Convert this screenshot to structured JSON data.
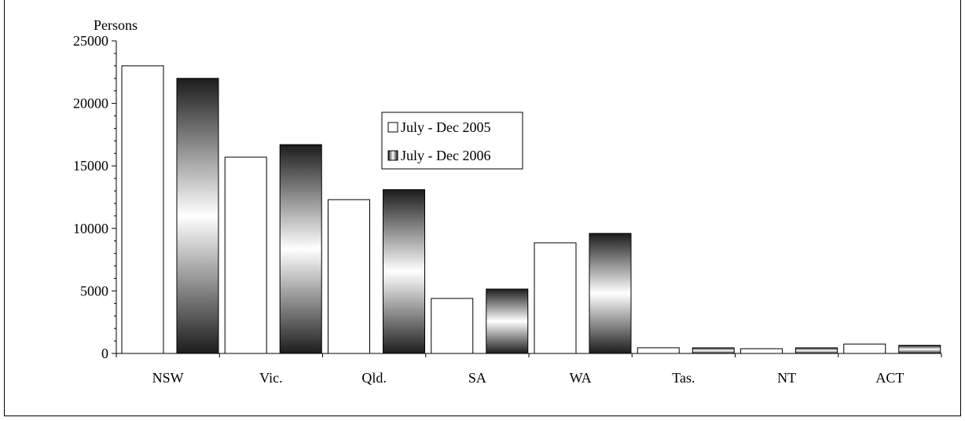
{
  "chart_data": {
    "type": "bar",
    "ylabel": "Persons",
    "ylim": [
      0,
      25000
    ],
    "yticks": [
      0,
      5000,
      10000,
      15000,
      20000,
      25000
    ],
    "yticks_labels": [
      "0",
      "5000",
      "10000",
      "15000",
      "20000",
      "25000"
    ],
    "categories": [
      "NSW",
      "Vic.",
      "Qld.",
      "SA",
      "WA",
      "Tas.",
      "NT",
      "ACT"
    ],
    "series": [
      {
        "name": "July - Dec 2005",
        "values": [
          23000,
          15700,
          12300,
          4400,
          8850,
          450,
          380,
          750
        ]
      },
      {
        "name": "July - Dec 2006",
        "values": [
          22000,
          16700,
          13100,
          5150,
          9600,
          450,
          450,
          650
        ]
      }
    ],
    "legend_position": "center",
    "grid": false
  }
}
